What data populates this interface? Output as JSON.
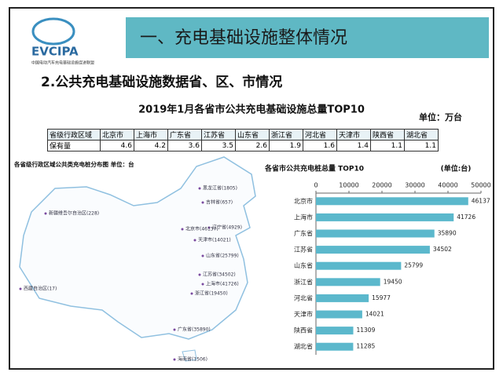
{
  "logo": {
    "name": "EVCIPA",
    "org": "中国电动汽车充电基础设施促进联盟"
  },
  "header": {
    "title": "一、充电基础设施整体情况"
  },
  "subtitle": "2.公共充电基础设施数据省、区、市情况",
  "table": {
    "title": "2019年1月各省市公共充电基础设施总量TOP10",
    "unit": "单位：万台",
    "header": [
      "省级行政区域",
      "北京市",
      "上海市",
      "广东省",
      "江苏省",
      "山东省",
      "浙江省",
      "河北省",
      "天津市",
      "陕西省",
      "湖北省"
    ],
    "rows": [
      [
        "保有量",
        4.6,
        4.2,
        3.6,
        3.5,
        2.6,
        1.9,
        1.6,
        1.4,
        1.1,
        1.1
      ]
    ]
  },
  "map": {
    "title": "各省级行政区域公共类充电桩分布图  单位：台",
    "labels": [
      "新疆维吾尔自治区(228)",
      "西藏自治区(17)",
      "黑龙江省(1805)",
      "吉林省(657)",
      "辽宁省(4929)",
      "北京市(46137)",
      "天津市(14021)",
      "山东省(25799)",
      "江苏省(34502)",
      "上海市(41726)",
      "浙江省(19450)",
      "广东省(35890)",
      "海南省(1506)"
    ]
  },
  "chart_data": {
    "type": "bar",
    "orientation": "horizontal",
    "title": "各省市公共充电桩总量 TOP10",
    "subtitle": "(单位:台)",
    "categories": [
      "北京市",
      "上海市",
      "广东省",
      "江苏省",
      "山东省",
      "浙江省",
      "河北省",
      "天津市",
      "陕西省",
      "湖北省"
    ],
    "values": [
      46137,
      41726,
      35890,
      34502,
      25799,
      19450,
      15977,
      14021,
      11309,
      11285
    ],
    "color": "#5bb8cc",
    "xlim": [
      0,
      50000
    ],
    "xticks": [
      0,
      10000,
      20000,
      30000,
      40000,
      50000
    ]
  }
}
